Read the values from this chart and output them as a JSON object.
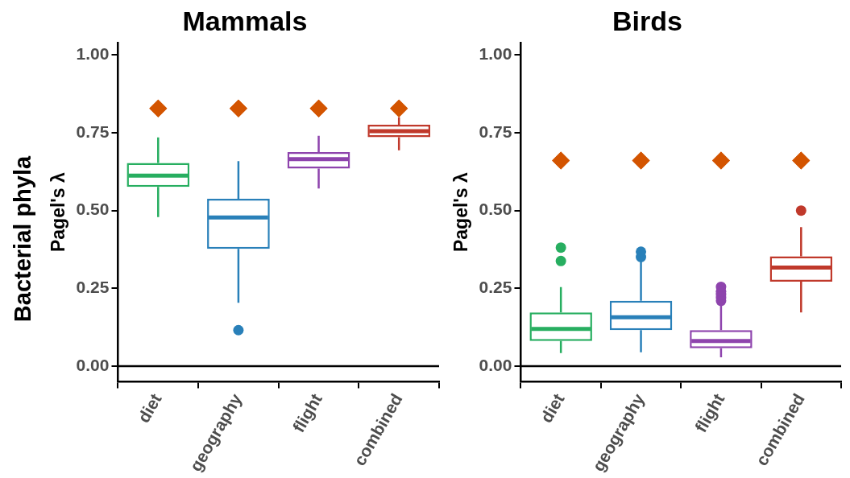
{
  "chart_data": [
    {
      "type": "box",
      "title": "Mammals",
      "ylabel": "Pagel's λ",
      "annotations": [
        "Bacterial phyla"
      ],
      "categories": [
        "diet",
        "geography",
        "flight",
        "combined"
      ],
      "ylim": [
        -0.05,
        1.04
      ],
      "yticks": [
        {
          "value": 0,
          "label": "0.00"
        },
        {
          "value": 0.25,
          "label": "0.25"
        },
        {
          "value": 0.5,
          "label": "0.50"
        },
        {
          "value": 0.75,
          "label": "0.75"
        },
        {
          "value": 1,
          "label": "1.00"
        }
      ],
      "grid": false,
      "legend": false,
      "ref_lines": [
        {
          "axis": "y",
          "value": 0,
          "color": "#000000"
        }
      ],
      "series": [
        {
          "colors": [
            "#27ae60",
            "#2980b9",
            "#8e44ad",
            "#c0392b"
          ],
          "boxes": [
            {
              "low": 0.479,
              "q1": 0.576,
              "median": 0.612,
              "q3": 0.653,
              "high": 0.735
            },
            {
              "low": 0.204,
              "q1": 0.377,
              "median": 0.478,
              "q3": 0.538,
              "high": 0.659,
              "outliers": [
                0.116
              ]
            },
            {
              "low": 0.571,
              "q1": 0.635,
              "median": 0.665,
              "q3": 0.688,
              "high": 0.74
            },
            {
              "low": 0.694,
              "q1": 0.736,
              "median": 0.755,
              "q3": 0.776,
              "high": 0.8
            }
          ]
        },
        {
          "type": "scatter",
          "marker": "diamond",
          "color": "#d35400",
          "x": [
            "diet",
            "geography",
            "flight",
            "combined"
          ],
          "values": [
            0.828,
            0.828,
            0.828,
            0.828
          ]
        }
      ]
    },
    {
      "type": "box",
      "title": "Birds",
      "ylabel": "Pagel's λ",
      "categories": [
        "diet",
        "geography",
        "flight",
        "combined"
      ],
      "ylim": [
        -0.05,
        1.04
      ],
      "yticks": [
        {
          "value": 0,
          "label": "0.00"
        },
        {
          "value": 0.25,
          "label": "0.25"
        },
        {
          "value": 0.5,
          "label": "0.50"
        },
        {
          "value": 0.75,
          "label": "0.75"
        },
        {
          "value": 1,
          "label": "1.00"
        }
      ],
      "grid": false,
      "legend": false,
      "ref_lines": [
        {
          "axis": "y",
          "value": 0,
          "color": "#000000"
        }
      ],
      "series": [
        {
          "colors": [
            "#27ae60",
            "#2980b9",
            "#8e44ad",
            "#c0392b"
          ],
          "boxes": [
            {
              "low": 0.042,
              "q1": 0.081,
              "median": 0.12,
              "q3": 0.173,
              "high": 0.254,
              "outliers": [
                0.338,
                0.381
              ]
            },
            {
              "low": 0.045,
              "q1": 0.116,
              "median": 0.157,
              "q3": 0.21,
              "high": 0.34,
              "outliers": [
                0.351,
                0.368
              ]
            },
            {
              "low": 0.029,
              "q1": 0.058,
              "median": 0.081,
              "q3": 0.116,
              "high": 0.2,
              "outliers": [
                0.21,
                0.22,
                0.23,
                0.24,
                0.255
              ]
            },
            {
              "low": 0.173,
              "q1": 0.272,
              "median": 0.317,
              "q3": 0.353,
              "high": 0.447,
              "outliers": [
                0.5
              ]
            }
          ]
        },
        {
          "type": "scatter",
          "marker": "diamond",
          "color": "#d35400",
          "x": [
            "diet",
            "geography",
            "flight",
            "combined"
          ],
          "values": [
            0.661,
            0.661,
            0.661,
            0.661
          ]
        }
      ]
    }
  ]
}
